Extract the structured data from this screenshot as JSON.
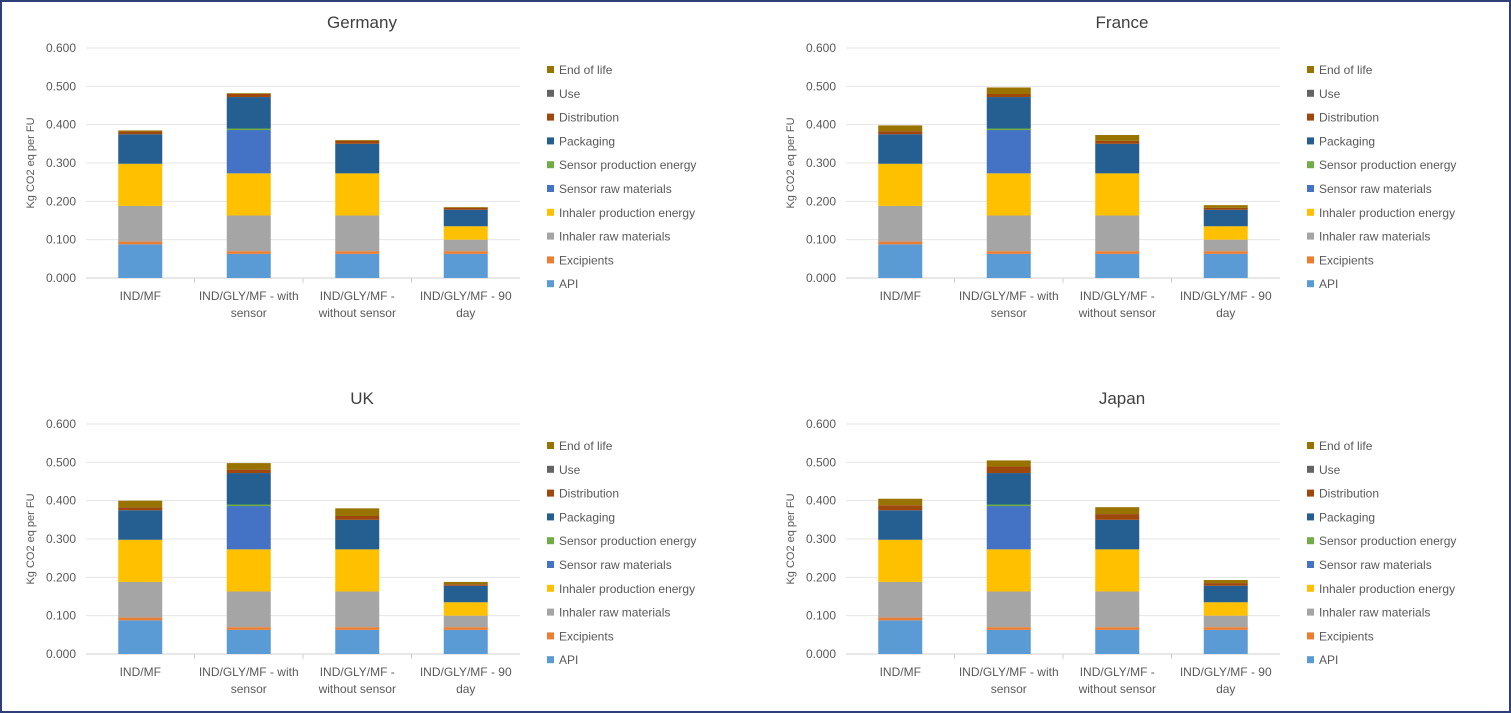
{
  "legend": {
    "colors": {
      "API": "#5b9bd5",
      "Excipients": "#ed7d31",
      "Inhaler raw materials": "#a5a5a5",
      "Inhaler production energy": "#ffc000",
      "Sensor raw materials": "#4472c4",
      "Sensor production energy": "#70ad47",
      "Packaging": "#255e91",
      "Distribution": "#9e480e",
      "Use": "#636363",
      "End of life": "#997300"
    }
  },
  "chart_data": [
    {
      "type": "bar",
      "stacked": true,
      "title": "Germany",
      "ylabel": "Kg CO2 eq per FU",
      "ylim": [
        0,
        0.6
      ],
      "yticks": [
        "0.000",
        "0.100",
        "0.200",
        "0.300",
        "0.400",
        "0.500",
        "0.600"
      ],
      "categories": [
        "IND/MF",
        "IND/GLY/MF - with sensor",
        "IND/GLY/MF - without sensor",
        "IND/GLY/MF - 90 day"
      ],
      "legend_position": "right",
      "grid": true,
      "series": [
        {
          "name": "API",
          "values": [
            0.088,
            0.063,
            0.063,
            0.063
          ]
        },
        {
          "name": "Excipients",
          "values": [
            0.007,
            0.007,
            0.007,
            0.007
          ]
        },
        {
          "name": "Inhaler raw materials",
          "values": [
            0.093,
            0.093,
            0.093,
            0.03
          ]
        },
        {
          "name": "Inhaler production energy",
          "values": [
            0.11,
            0.11,
            0.11,
            0.035
          ]
        },
        {
          "name": "Sensor raw materials",
          "values": [
            0,
            0.113,
            0,
            0
          ]
        },
        {
          "name": "Sensor production energy",
          "values": [
            0,
            0.004,
            0,
            0
          ]
        },
        {
          "name": "Packaging",
          "values": [
            0.077,
            0.082,
            0.077,
            0.043
          ]
        },
        {
          "name": "Distribution",
          "values": [
            0.007,
            0.008,
            0.008,
            0.005
          ]
        },
        {
          "name": "Use",
          "values": [
            0,
            0,
            0,
            0
          ]
        },
        {
          "name": "End of life",
          "values": [
            0.003,
            0.002,
            0.002,
            0.002
          ]
        }
      ]
    },
    {
      "type": "bar",
      "stacked": true,
      "title": "France",
      "ylabel": "Kg CO2 eq per FU",
      "ylim": [
        0,
        0.6
      ],
      "yticks": [
        "0.000",
        "0.100",
        "0.200",
        "0.300",
        "0.400",
        "0.500",
        "0.600"
      ],
      "categories": [
        "IND/MF",
        "IND/GLY/MF - with sensor",
        "IND/GLY/MF - without sensor",
        "IND/GLY/MF - 90 day"
      ],
      "legend_position": "right",
      "grid": true,
      "series": [
        {
          "name": "API",
          "values": [
            0.088,
            0.063,
            0.063,
            0.063
          ]
        },
        {
          "name": "Excipients",
          "values": [
            0.007,
            0.007,
            0.007,
            0.007
          ]
        },
        {
          "name": "Inhaler raw materials",
          "values": [
            0.093,
            0.093,
            0.093,
            0.03
          ]
        },
        {
          "name": "Inhaler production energy",
          "values": [
            0.11,
            0.11,
            0.11,
            0.035
          ]
        },
        {
          "name": "Sensor raw materials",
          "values": [
            0,
            0.113,
            0,
            0
          ]
        },
        {
          "name": "Sensor production energy",
          "values": [
            0,
            0.004,
            0,
            0
          ]
        },
        {
          "name": "Packaging",
          "values": [
            0.077,
            0.082,
            0.077,
            0.043
          ]
        },
        {
          "name": "Distribution",
          "values": [
            0.008,
            0.008,
            0.008,
            0.005
          ]
        },
        {
          "name": "Use",
          "values": [
            0,
            0,
            0,
            0
          ]
        },
        {
          "name": "End of life",
          "values": [
            0.015,
            0.017,
            0.015,
            0.007
          ]
        }
      ]
    },
    {
      "type": "bar",
      "stacked": true,
      "title": "UK",
      "ylabel": "Kg CO2 eq per FU",
      "ylim": [
        0,
        0.6
      ],
      "yticks": [
        "0.000",
        "0.100",
        "0.200",
        "0.300",
        "0.400",
        "0.500",
        "0.600"
      ],
      "categories": [
        "IND/MF",
        "IND/GLY/MF - with sensor",
        "IND/GLY/MF - without sensor",
        "IND/GLY/MF - 90 day"
      ],
      "legend_position": "right",
      "grid": true,
      "series": [
        {
          "name": "API",
          "values": [
            0.088,
            0.063,
            0.063,
            0.063
          ]
        },
        {
          "name": "Excipients",
          "values": [
            0.007,
            0.007,
            0.007,
            0.007
          ]
        },
        {
          "name": "Inhaler raw materials",
          "values": [
            0.093,
            0.093,
            0.093,
            0.03
          ]
        },
        {
          "name": "Inhaler production energy",
          "values": [
            0.11,
            0.11,
            0.11,
            0.035
          ]
        },
        {
          "name": "Sensor raw materials",
          "values": [
            0,
            0.113,
            0,
            0
          ]
        },
        {
          "name": "Sensor production energy",
          "values": [
            0,
            0.004,
            0,
            0
          ]
        },
        {
          "name": "Packaging",
          "values": [
            0.077,
            0.082,
            0.077,
            0.043
          ]
        },
        {
          "name": "Distribution",
          "values": [
            0.007,
            0.009,
            0.01,
            0.004
          ]
        },
        {
          "name": "Use",
          "values": [
            0,
            0,
            0,
            0
          ]
        },
        {
          "name": "End of life",
          "values": [
            0.018,
            0.017,
            0.02,
            0.006
          ]
        }
      ]
    },
    {
      "type": "bar",
      "stacked": true,
      "title": "Japan",
      "ylabel": "Kg CO2 eq per FU",
      "ylim": [
        0,
        0.6
      ],
      "yticks": [
        "0.000",
        "0.100",
        "0.200",
        "0.300",
        "0.400",
        "0.500",
        "0.600"
      ],
      "categories": [
        "IND/MF",
        "IND/GLY/MF - with sensor",
        "IND/GLY/MF - without sensor",
        "IND/GLY/MF - 90 day"
      ],
      "legend_position": "right",
      "grid": true,
      "series": [
        {
          "name": "API",
          "values": [
            0.088,
            0.063,
            0.063,
            0.063
          ]
        },
        {
          "name": "Excipients",
          "values": [
            0.007,
            0.007,
            0.007,
            0.007
          ]
        },
        {
          "name": "Inhaler raw materials",
          "values": [
            0.093,
            0.093,
            0.093,
            0.03
          ]
        },
        {
          "name": "Inhaler production energy",
          "values": [
            0.11,
            0.11,
            0.11,
            0.035
          ]
        },
        {
          "name": "Sensor raw materials",
          "values": [
            0,
            0.113,
            0,
            0
          ]
        },
        {
          "name": "Sensor production energy",
          "values": [
            0,
            0.004,
            0,
            0
          ]
        },
        {
          "name": "Packaging",
          "values": [
            0.077,
            0.082,
            0.077,
            0.043
          ]
        },
        {
          "name": "Distribution",
          "values": [
            0.013,
            0.017,
            0.015,
            0.007
          ]
        },
        {
          "name": "Use",
          "values": [
            0,
            0,
            0,
            0
          ]
        },
        {
          "name": "End of life",
          "values": [
            0.017,
            0.016,
            0.018,
            0.008
          ]
        }
      ]
    }
  ]
}
